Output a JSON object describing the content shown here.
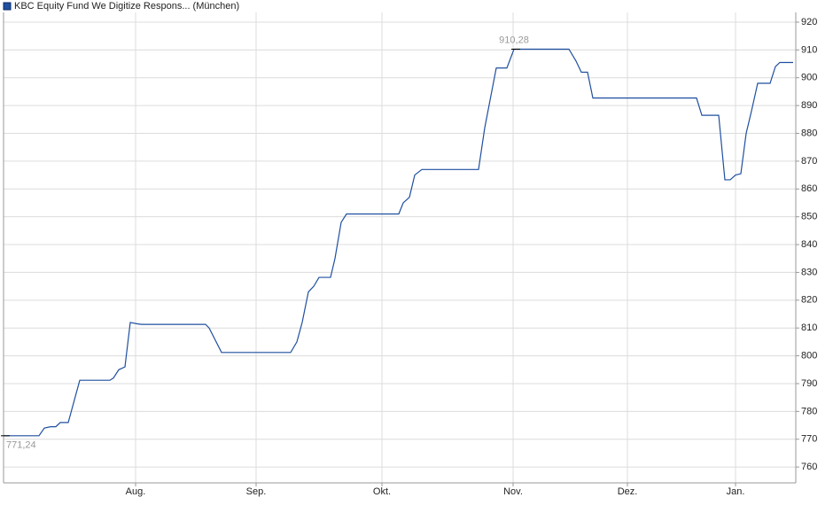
{
  "chart_data": {
    "type": "line",
    "series": [
      {
        "name": "KBC Equity Fund We Digitize Respons... (München)",
        "color": "#1f4f9f",
        "x": [
          0,
          40,
          46,
          53,
          59,
          64,
          73,
          86,
          120,
          124,
          130,
          137,
          143,
          151,
          156,
          228,
          232,
          246,
          324,
          331,
          337,
          344,
          350,
          356,
          369,
          374,
          381,
          387,
          446,
          451,
          458,
          464,
          472,
          536,
          543,
          556,
          568,
          576,
          638,
          646,
          652,
          659,
          665,
          782,
          788,
          807,
          814,
          820,
          826,
          832,
          838,
          844,
          851,
          865,
          871,
          876,
          891
        ],
        "values": [
          771.24,
          771.24,
          774,
          774.5,
          774.5,
          776,
          776,
          791.2,
          791.2,
          792,
          795,
          796,
          812,
          811.5,
          811.3,
          811.3,
          810,
          801.2,
          801.2,
          805,
          812,
          823,
          825,
          828.2,
          828.2,
          835,
          848,
          851,
          851,
          855,
          857,
          865,
          867,
          867,
          882,
          903.5,
          903.5,
          910.28,
          910.28,
          906,
          902,
          902,
          892.7,
          892.7,
          886.5,
          886.5,
          863.3,
          863.3,
          865,
          865.5,
          880,
          888,
          898,
          898,
          904,
          905.5,
          905.5
        ]
      }
    ],
    "annotations": [
      {
        "x": 576,
        "y": 910.28,
        "label": "910,28"
      },
      {
        "x": 0,
        "y": 771.24,
        "label": "771,24"
      }
    ],
    "xlim": [
      0,
      894
    ],
    "xticks": [
      {
        "value": 149,
        "label": "Aug."
      },
      {
        "value": 285,
        "label": "Sep."
      },
      {
        "value": 427,
        "label": "Okt."
      },
      {
        "value": 575,
        "label": "Nov."
      },
      {
        "value": 704,
        "label": "Dez."
      },
      {
        "value": 826,
        "label": "Jan."
      }
    ],
    "ylim": [
      754.3,
      923.5
    ],
    "yticks": [
      760,
      770,
      780,
      790,
      800,
      810,
      820,
      830,
      840,
      850,
      860,
      870,
      880,
      890,
      900,
      910,
      920
    ],
    "grid": true
  }
}
